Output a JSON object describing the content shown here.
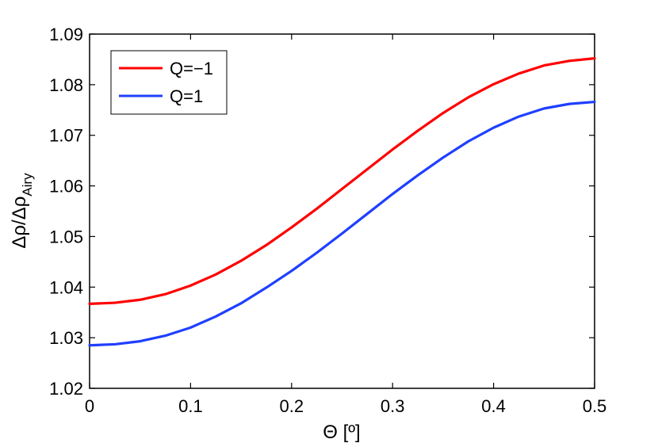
{
  "chart_data": {
    "type": "line",
    "xlabel": "Θ [º]",
    "ylabel_main": "Δρ/Δρ",
    "ylabel_sub": "Airy",
    "xlim": [
      0,
      0.5
    ],
    "ylim": [
      1.02,
      1.09
    ],
    "xticks": [
      "0",
      "0.1",
      "0.2",
      "0.3",
      "0.4",
      "0.5"
    ],
    "yticks": [
      "1.02",
      "1.03",
      "1.04",
      "1.05",
      "1.06",
      "1.07",
      "1.08",
      "1.09"
    ],
    "grid": false,
    "legend_position": "top-left",
    "x": [
      0,
      0.025,
      0.05,
      0.075,
      0.1,
      0.125,
      0.15,
      0.175,
      0.2,
      0.225,
      0.25,
      0.275,
      0.3,
      0.325,
      0.35,
      0.375,
      0.4,
      0.425,
      0.45,
      0.475,
      0.5
    ],
    "series": [
      {
        "name": "Q=−1",
        "color": "#ff0000",
        "values": [
          1.0367,
          1.0369,
          1.0375,
          1.0386,
          1.0403,
          1.0425,
          1.0452,
          1.0483,
          1.0518,
          1.0555,
          1.0594,
          1.0633,
          1.0672,
          1.0709,
          1.0744,
          1.0775,
          1.0801,
          1.0822,
          1.0838,
          1.0847,
          1.0852
        ]
      },
      {
        "name": "Q=1",
        "color": "#1f3fff",
        "values": [
          1.0285,
          1.0287,
          1.0293,
          1.0304,
          1.032,
          1.0342,
          1.0368,
          1.0399,
          1.0432,
          1.0468,
          1.0506,
          1.0545,
          1.0584,
          1.0621,
          1.0656,
          1.0688,
          1.0715,
          1.0737,
          1.0753,
          1.0762,
          1.0766
        ]
      }
    ]
  }
}
